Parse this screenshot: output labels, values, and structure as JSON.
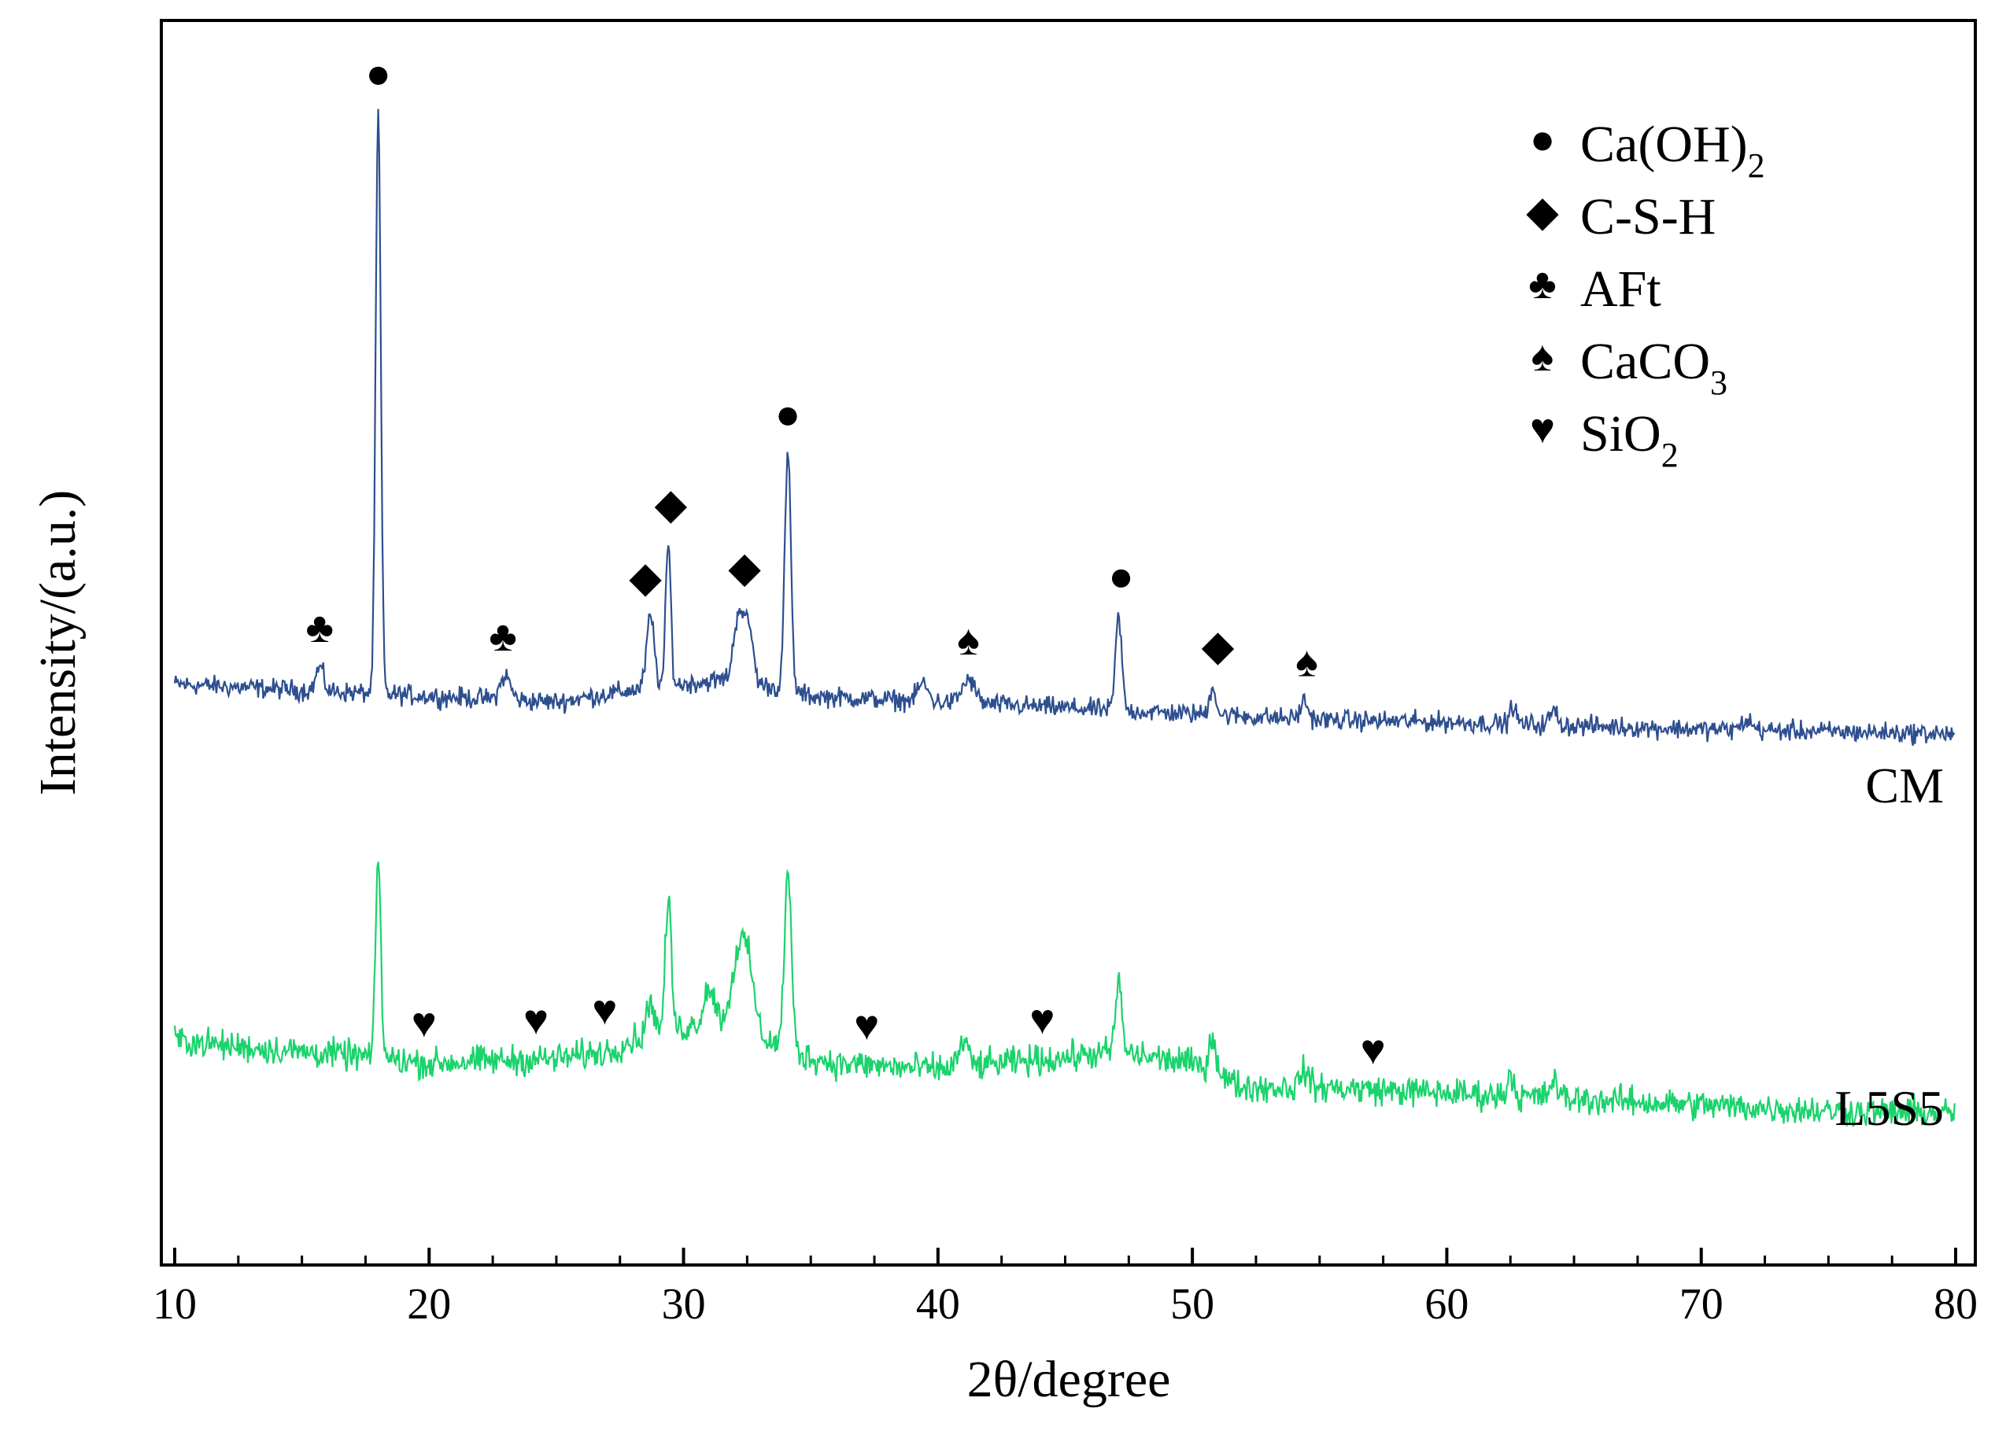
{
  "chart_data": {
    "type": "line",
    "title": "",
    "xlabel": "2θ/degree",
    "ylabel": "Intensity/(a.u.)",
    "xlim": [
      10,
      80
    ],
    "x_ticks": [
      10,
      20,
      30,
      40,
      50,
      60,
      70,
      80
    ],
    "x_minor_step": 2.5,
    "y_ticks_visible": false,
    "series": [
      {
        "name": "CM",
        "color": "#2e4f8f",
        "offset": 0.34,
        "noise": 0.006,
        "points": [
          [
            10,
            0.05
          ],
          [
            15,
            0.045
          ],
          [
            20,
            0.04
          ],
          [
            25,
            0.035
          ],
          [
            28,
            0.045
          ],
          [
            30,
            0.05
          ],
          [
            32,
            0.055
          ],
          [
            35,
            0.04
          ],
          [
            40,
            0.035
          ],
          [
            45,
            0.03
          ],
          [
            50,
            0.025
          ],
          [
            55,
            0.02
          ],
          [
            60,
            0.018
          ],
          [
            65,
            0.015
          ],
          [
            70,
            0.012
          ],
          [
            75,
            0.01
          ],
          [
            80,
            0.008
          ]
        ],
        "peaks": [
          [
            15.7,
            0.02,
            0.15
          ],
          [
            18.0,
            0.49,
            0.1
          ],
          [
            23.0,
            0.02,
            0.2
          ],
          [
            28.7,
            0.06,
            0.15
          ],
          [
            29.4,
            0.12,
            0.1
          ],
          [
            32.2,
            0.06,
            0.2
          ],
          [
            32.6,
            0.04,
            0.15
          ],
          [
            34.1,
            0.2,
            0.12
          ],
          [
            39.4,
            0.015,
            0.2
          ],
          [
            41.2,
            0.02,
            0.25
          ],
          [
            47.1,
            0.08,
            0.12
          ],
          [
            50.8,
            0.025,
            0.12
          ],
          [
            54.4,
            0.015,
            0.15
          ],
          [
            62.6,
            0.015,
            0.12
          ],
          [
            64.2,
            0.012,
            0.15
          ],
          [
            71.8,
            0.008,
            0.2
          ]
        ]
      },
      {
        "name": "L5S5",
        "color": "#1bd36c",
        "offset": 0.0,
        "noise": 0.009,
        "points": [
          [
            10,
            0.09
          ],
          [
            12,
            0.085
          ],
          [
            15,
            0.08
          ],
          [
            18,
            0.075
          ],
          [
            20,
            0.07
          ],
          [
            22,
            0.072
          ],
          [
            25,
            0.074
          ],
          [
            27,
            0.08
          ],
          [
            28,
            0.09
          ],
          [
            30,
            0.1
          ],
          [
            32,
            0.11
          ],
          [
            34,
            0.08
          ],
          [
            36,
            0.07
          ],
          [
            40,
            0.065
          ],
          [
            45,
            0.075
          ],
          [
            47,
            0.08
          ],
          [
            50,
            0.07
          ],
          [
            52,
            0.05
          ],
          [
            55,
            0.05
          ],
          [
            60,
            0.045
          ],
          [
            65,
            0.04
          ],
          [
            70,
            0.035
          ],
          [
            75,
            0.03
          ],
          [
            80,
            0.028
          ]
        ],
        "peaks": [
          [
            18.0,
            0.17,
            0.1
          ],
          [
            28.7,
            0.03,
            0.15
          ],
          [
            29.4,
            0.11,
            0.12
          ],
          [
            31.0,
            0.03,
            0.2
          ],
          [
            32.2,
            0.06,
            0.25
          ],
          [
            32.6,
            0.04,
            0.2
          ],
          [
            34.1,
            0.15,
            0.14
          ],
          [
            41.0,
            0.02,
            0.2
          ],
          [
            47.1,
            0.06,
            0.12
          ],
          [
            50.8,
            0.03,
            0.15
          ],
          [
            54.4,
            0.015,
            0.15
          ],
          [
            62.5,
            0.02,
            0.12
          ],
          [
            64.2,
            0.015,
            0.15
          ]
        ]
      }
    ],
    "sample_labels": [
      "CM",
      "L5S5"
    ],
    "annotations": [
      {
        "phase": "AFt",
        "symbol": "♣",
        "x": 15.7,
        "series": "CM"
      },
      {
        "phase": "Ca(OH)2",
        "symbol": "●",
        "x": 18.0,
        "series": "CM"
      },
      {
        "phase": "AFt",
        "symbol": "♣",
        "x": 22.9,
        "series": "CM"
      },
      {
        "phase": "C-S-H",
        "symbol": "◆",
        "x": 28.5,
        "series": "CM"
      },
      {
        "phase": "C-S-H",
        "symbol": "◆",
        "x": 29.5,
        "series": "CM"
      },
      {
        "phase": "C-S-H",
        "symbol": "◆",
        "x": 32.4,
        "series": "CM"
      },
      {
        "phase": "Ca(OH)2",
        "symbol": "●",
        "x": 34.1,
        "series": "CM"
      },
      {
        "phase": "CaCO3",
        "symbol": "♠",
        "x": 41.2,
        "series": "CM"
      },
      {
        "phase": "Ca(OH)2",
        "symbol": "●",
        "x": 47.2,
        "series": "CM"
      },
      {
        "phase": "C-S-H",
        "symbol": "◆",
        "x": 51.0,
        "series": "CM"
      },
      {
        "phase": "CaCO3",
        "symbol": "♠",
        "x": 54.5,
        "series": "CM"
      },
      {
        "phase": "SiO2",
        "symbol": "♥",
        "x": 19.8,
        "series": "L5S5"
      },
      {
        "phase": "SiO2",
        "symbol": "♥",
        "x": 24.2,
        "series": "L5S5"
      },
      {
        "phase": "SiO2",
        "symbol": "♥",
        "x": 26.9,
        "series": "L5S5"
      },
      {
        "phase": "SiO2",
        "symbol": "♥",
        "x": 37.2,
        "series": "L5S5"
      },
      {
        "phase": "SiO2",
        "symbol": "♥",
        "x": 44.1,
        "series": "L5S5"
      },
      {
        "phase": "SiO2",
        "symbol": "♥",
        "x": 57.1,
        "series": "L5S5"
      }
    ],
    "legend": {
      "position": "top-right",
      "entries": [
        {
          "symbol": "●",
          "label": "Ca(OH)",
          "sub": "2"
        },
        {
          "symbol": "◆",
          "label": "C-S-H",
          "sub": ""
        },
        {
          "symbol": "♣",
          "label": "AFt",
          "sub": ""
        },
        {
          "symbol": "♠",
          "label": "CaCO",
          "sub": "3"
        },
        {
          "symbol": "♥",
          "label": "SiO",
          "sub": "2"
        }
      ]
    }
  }
}
